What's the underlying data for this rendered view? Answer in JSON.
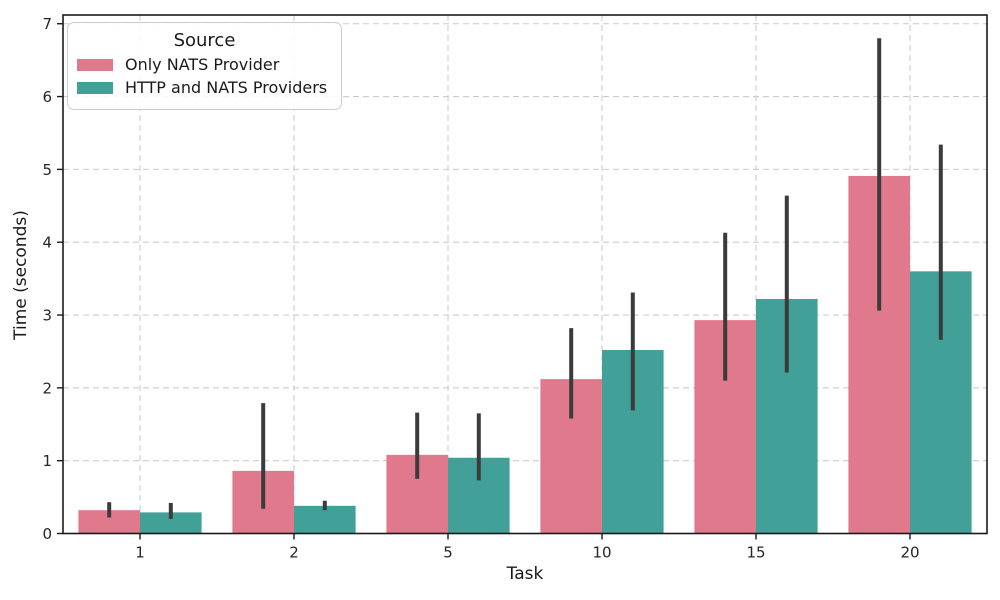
{
  "chart_data": {
    "type": "bar",
    "title": "",
    "xlabel": "Task",
    "ylabel": "Time (seconds)",
    "legend_title": "Source",
    "legend_position": "upper left",
    "grid": "both axes, dashed light gray",
    "categories": [
      "1",
      "2",
      "5",
      "10",
      "15",
      "20"
    ],
    "yticks": [
      0,
      1,
      2,
      3,
      4,
      5,
      6,
      7
    ],
    "ylim": [
      0,
      7.12
    ],
    "group_width": 0.8,
    "error_bar_color": "#3b3b3b",
    "grid_color": "#cccccc",
    "spine_color": "#1a1a1a",
    "series": [
      {
        "name": "Only NATS Provider",
        "color": "#e0798c",
        "values": [
          0.32,
          0.86,
          1.08,
          2.12,
          2.93,
          4.91
        ],
        "ci_low": [
          0.22,
          0.34,
          0.75,
          1.58,
          2.1,
          3.06
        ],
        "ci_high": [
          0.43,
          1.79,
          1.66,
          2.82,
          4.13,
          6.8
        ]
      },
      {
        "name": "HTTP and NATS Providers",
        "color": "#41a098",
        "values": [
          0.29,
          0.38,
          1.04,
          2.52,
          3.22,
          3.6
        ],
        "ci_low": [
          0.2,
          0.32,
          0.73,
          1.69,
          2.21,
          2.66
        ],
        "ci_high": [
          0.42,
          0.45,
          1.65,
          3.31,
          4.64,
          5.34
        ]
      }
    ]
  }
}
